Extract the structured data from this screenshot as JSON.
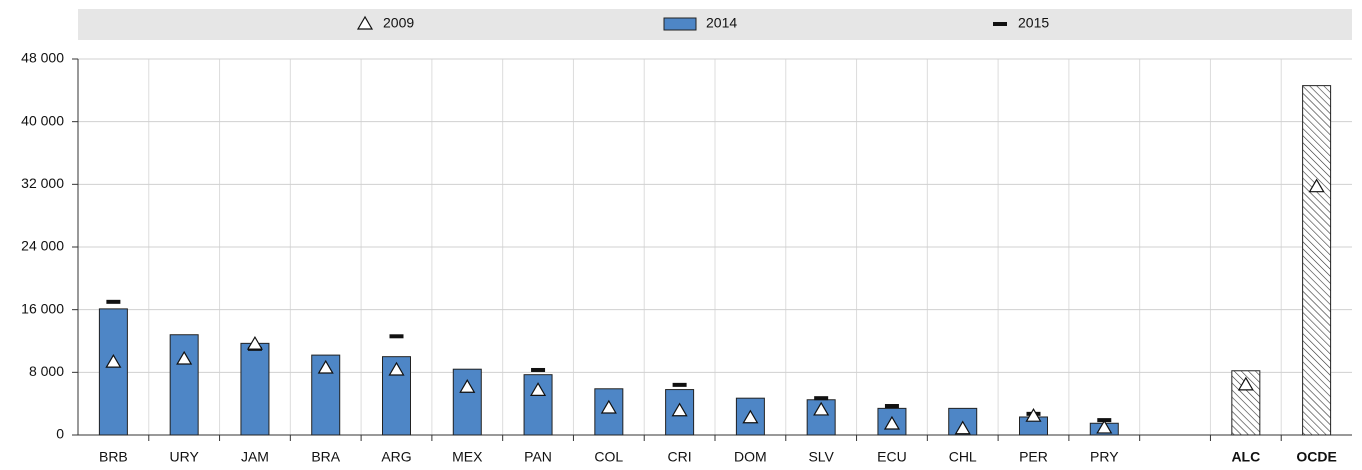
{
  "chart_data": {
    "type": "bar",
    "categories": [
      "BRB",
      "URY",
      "JAM",
      "BRA",
      "ARG",
      "MEX",
      "PAN",
      "COL",
      "CRI",
      "DOM",
      "SLV",
      "ECU",
      "CHL",
      "PER",
      "PRY",
      null,
      "ALC",
      "OCDE"
    ],
    "hatched": [
      false,
      false,
      false,
      false,
      false,
      false,
      false,
      false,
      false,
      false,
      false,
      false,
      false,
      false,
      false,
      false,
      true,
      true
    ],
    "series": [
      {
        "name": "2009",
        "marker": "triangle",
        "color": "#ffffff",
        "values": [
          9300,
          9700,
          11600,
          8550,
          8300,
          6100,
          5700,
          3450,
          3100,
          2200,
          3200,
          1400,
          800,
          2400,
          900,
          null,
          6400,
          31700
        ]
      },
      {
        "name": "2014",
        "marker": "bar",
        "color": "#4e86c6",
        "values": [
          16100,
          12800,
          11700,
          10200,
          10000,
          8400,
          7700,
          5900,
          5800,
          4700,
          4500,
          3400,
          3400,
          2300,
          1500,
          null,
          8200,
          44600
        ]
      },
      {
        "name": "2015",
        "marker": "dash",
        "color": "#111111",
        "values": [
          17000,
          null,
          11000,
          null,
          12600,
          null,
          8300,
          null,
          6400,
          null,
          4700,
          3700,
          null,
          2700,
          1900,
          null,
          null,
          null
        ]
      }
    ],
    "ylim": [
      0,
      48000
    ],
    "yticks": [
      0,
      {
        "value": 8000,
        "label": "8 000"
      },
      {
        "value": 16000,
        "label": "16 000"
      },
      {
        "value": 24000,
        "label": "24 000"
      },
      {
        "value": 32000,
        "label": "32 000"
      },
      {
        "value": 40000,
        "label": "40 000"
      },
      {
        "value": 48000,
        "label": "48 000"
      }
    ],
    "grid": true
  }
}
